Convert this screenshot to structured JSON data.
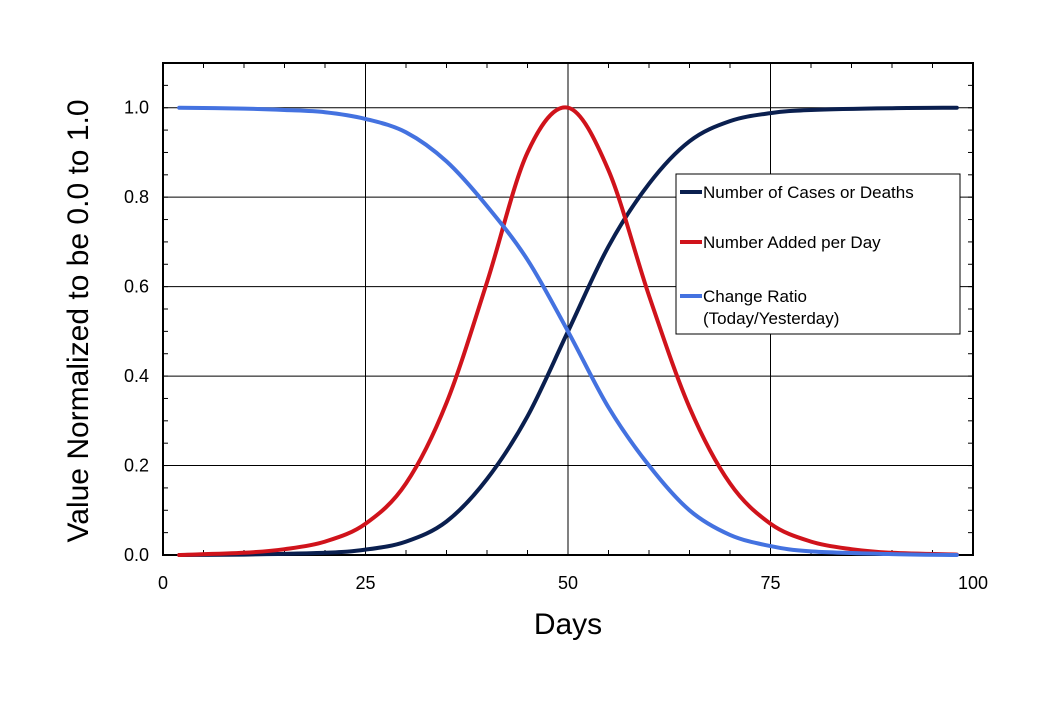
{
  "chart_data": {
    "type": "line",
    "xlabel": "Days",
    "ylabel": "Value Normalized to be 0.0  to 1.0",
    "xlim": [
      0,
      100
    ],
    "ylim": [
      0,
      1.1
    ],
    "xticks": [
      0,
      25,
      50,
      75,
      100
    ],
    "xtick_labels": [
      "0",
      "25",
      "50",
      "75",
      "100"
    ],
    "yticks": [
      0,
      0.2,
      0.4,
      0.6,
      0.8,
      1.0
    ],
    "ytick_labels": [
      "0.0",
      "0.2",
      "0.4",
      "0.6",
      "0.8",
      "1.0"
    ],
    "grid": true,
    "legend_position": "right",
    "series": [
      {
        "name": "Number of Cases or Deaths",
        "color": "#0a1f4f",
        "x": [
          2,
          10,
          20,
          25,
          30,
          35,
          40,
          45,
          50,
          55,
          60,
          65,
          70,
          75,
          80,
          90,
          98
        ],
        "y": [
          0.0,
          0.001,
          0.005,
          0.012,
          0.03,
          0.075,
          0.17,
          0.31,
          0.5,
          0.69,
          0.83,
          0.925,
          0.97,
          0.988,
          0.995,
          0.999,
          1.0
        ]
      },
      {
        "name": "Number Added per Day",
        "color": "#d0131b",
        "x": [
          2,
          10,
          15,
          20,
          25,
          30,
          35,
          40,
          45,
          50,
          55,
          60,
          65,
          70,
          75,
          80,
          85,
          90,
          98
        ],
        "y": [
          0.0,
          0.005,
          0.013,
          0.03,
          0.07,
          0.16,
          0.34,
          0.61,
          0.9,
          1.0,
          0.86,
          0.58,
          0.33,
          0.16,
          0.07,
          0.03,
          0.013,
          0.005,
          0.001
        ]
      },
      {
        "name": "Change Ratio\n(Today/Yesterday)",
        "color": "#4472e0",
        "x": [
          2,
          10,
          15,
          20,
          25,
          30,
          35,
          40,
          45,
          50,
          55,
          60,
          65,
          70,
          75,
          80,
          90,
          98
        ],
        "y": [
          1.0,
          0.998,
          0.995,
          0.99,
          0.975,
          0.945,
          0.88,
          0.78,
          0.66,
          0.5,
          0.33,
          0.2,
          0.1,
          0.045,
          0.02,
          0.008,
          0.002,
          0.0
        ]
      }
    ],
    "legend_lines": [
      [
        "Number of Cases or Deaths"
      ],
      [
        "Number Added per Day"
      ],
      [
        "Change Ratio",
        "(Today/Yesterday)"
      ]
    ]
  }
}
